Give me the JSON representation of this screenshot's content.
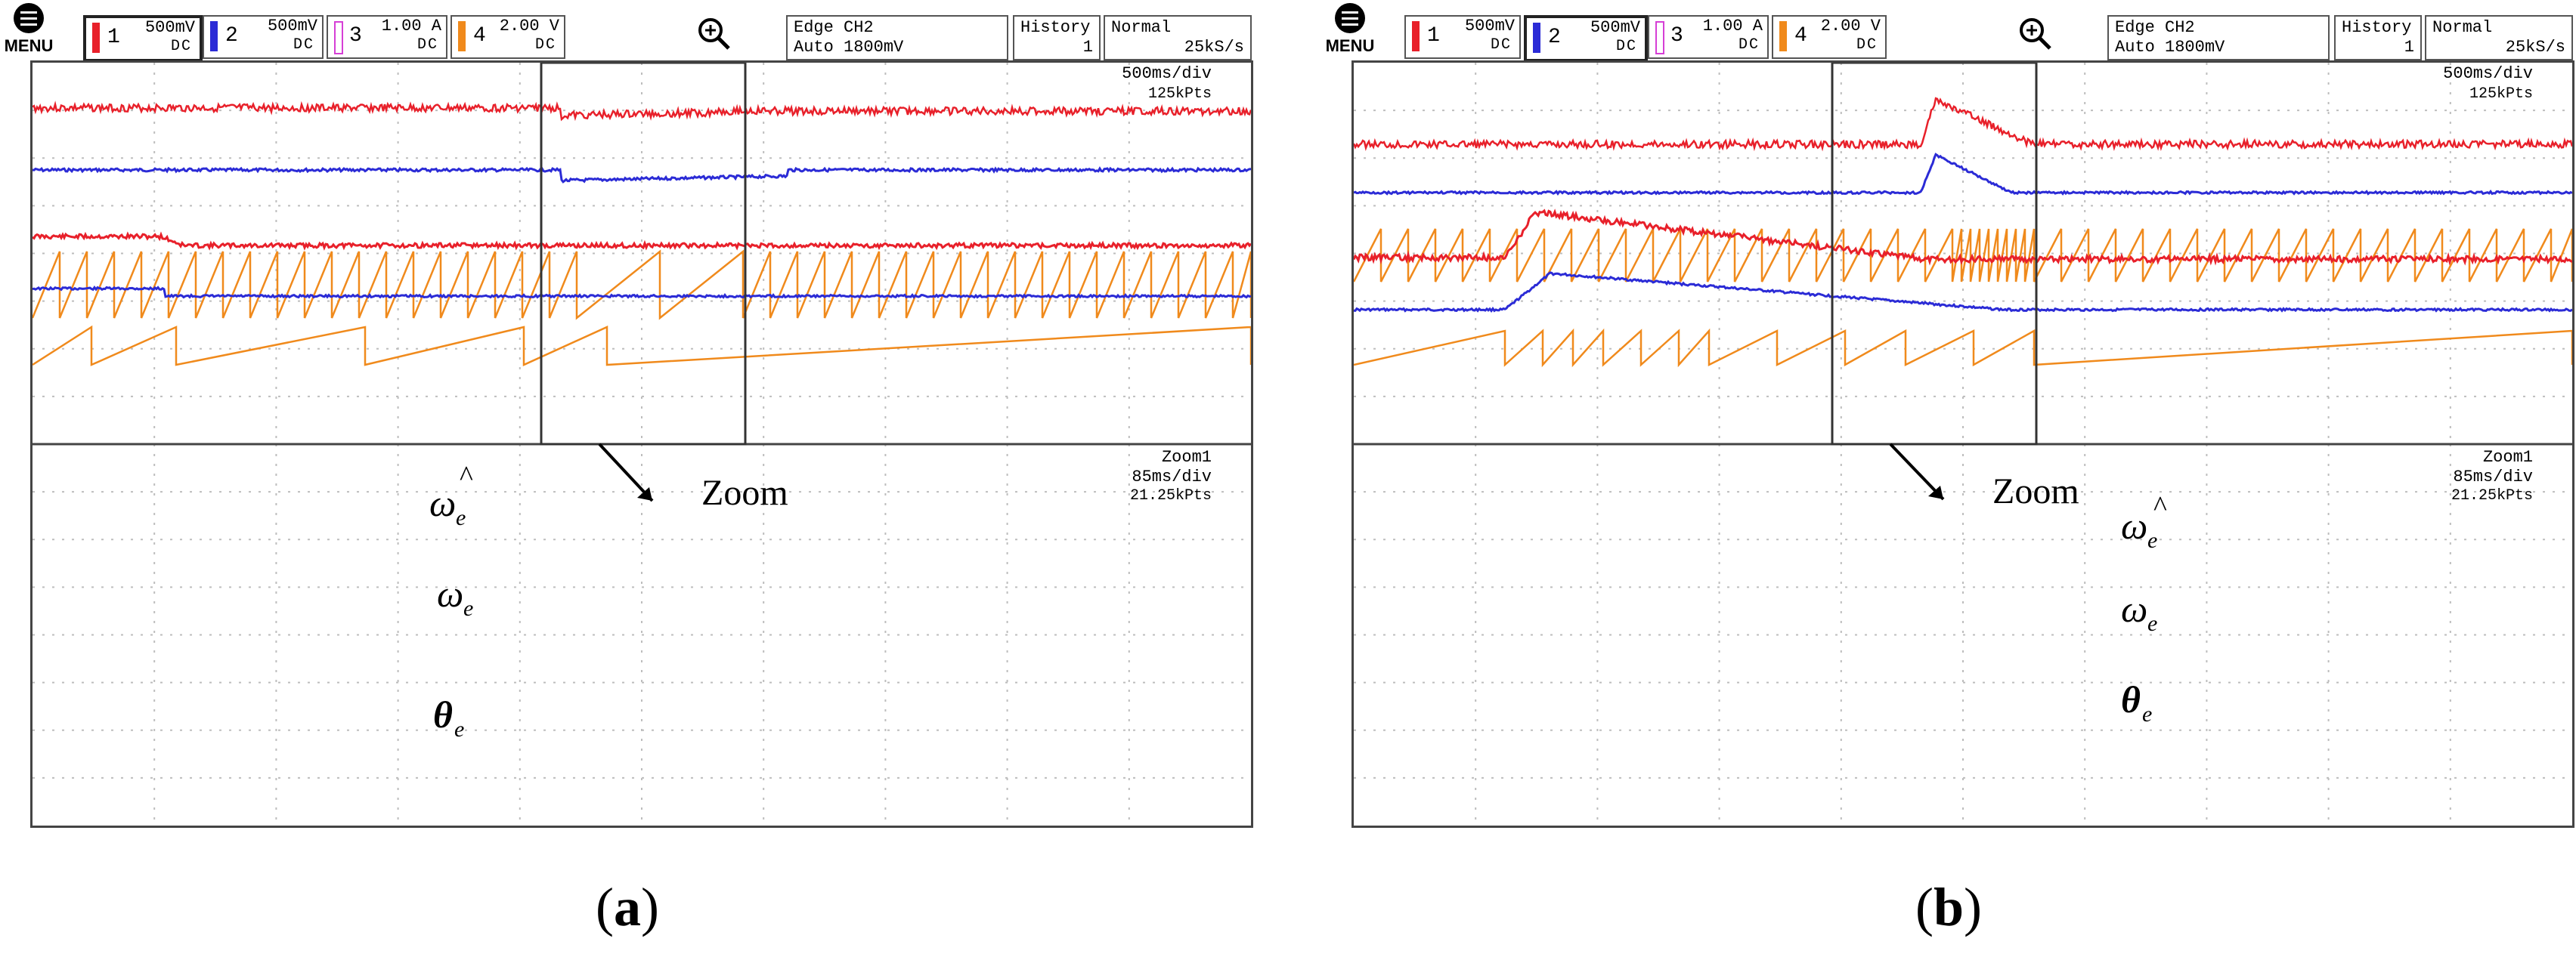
{
  "panels": [
    {
      "caption_label": "a",
      "menu_label": "MENU",
      "channels": [
        {
          "num": "1",
          "scale": "500mV",
          "coupling": "DC",
          "color": "#e8202a",
          "active": true
        },
        {
          "num": "2",
          "scale": "500mV",
          "coupling": "DC",
          "color": "#2b2bd6",
          "active": false
        },
        {
          "num": "3",
          "scale": "1.00 A",
          "coupling": "DC",
          "color": "#d63fd6",
          "active": false
        },
        {
          "num": "4",
          "scale": "2.00 V",
          "coupling": "DC",
          "color": "#f08a1c",
          "active": false
        }
      ],
      "trigger": {
        "line1": "Edge CH2",
        "line2": "Auto 1800mV"
      },
      "history": {
        "label": "History",
        "value": "1"
      },
      "mode": {
        "label": "Normal",
        "rate": "25kS/s"
      },
      "main_view": {
        "timebase": "500ms/div",
        "points": "125kPts"
      },
      "zoom_view": {
        "label": "Zoom1",
        "timebase": "85ms/div",
        "points": "21.25kPts"
      },
      "zoom_annotation": "Zoom",
      "trace_labels": {
        "w_hat": "ω",
        "w_hat_sub": "e",
        "w_hat_acc": "^",
        "w": "ω",
        "w_sub": "e",
        "theta": "θ",
        "theta_sub": "e"
      }
    },
    {
      "caption_label": "b",
      "menu_label": "MENU",
      "channels": [
        {
          "num": "1",
          "scale": "500mV",
          "coupling": "DC",
          "color": "#e8202a",
          "active": false
        },
        {
          "num": "2",
          "scale": "500mV",
          "coupling": "DC",
          "color": "#2b2bd6",
          "active": true
        },
        {
          "num": "3",
          "scale": "1.00 A",
          "coupling": "DC",
          "color": "#d63fd6",
          "active": false
        },
        {
          "num": "4",
          "scale": "2.00 V",
          "coupling": "DC",
          "color": "#f08a1c",
          "active": false
        }
      ],
      "trigger": {
        "line1": "Edge CH2",
        "line2": "Auto 1800mV"
      },
      "history": {
        "label": "History",
        "value": "1"
      },
      "mode": {
        "label": "Normal",
        "rate": "25kS/s"
      },
      "main_view": {
        "timebase": "500ms/div",
        "points": "125kPts"
      },
      "zoom_view": {
        "label": "Zoom1",
        "timebase": "85ms/div",
        "points": "21.25kPts"
      },
      "zoom_annotation": "Zoom",
      "trace_labels": {
        "w_hat": "ω",
        "w_hat_sub": "e",
        "w_hat_acc": "^",
        "w": "ω",
        "w_sub": "e",
        "theta": "θ",
        "theta_sub": "e"
      }
    }
  ],
  "colors": {
    "ch1": "#e8202a",
    "ch2": "#2b2bd6",
    "ch4": "#f08a1c",
    "grid": "#b8b8b8",
    "frame": "#444444"
  }
}
